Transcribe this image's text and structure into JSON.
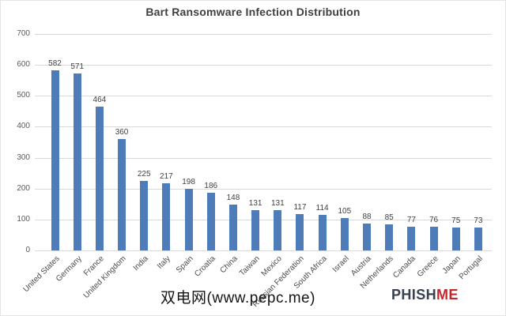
{
  "watermark": {
    "text": "双电网(www.pepc.me)"
  },
  "logo": {
    "part1": "PHISH",
    "part2": "ME",
    "color_dark": "#3a414c",
    "color_red": "#c1272d"
  },
  "chart_data": {
    "type": "bar",
    "title": "Bart Ransomware Infection Distribution",
    "categories": [
      "United States",
      "Germany",
      "France",
      "United Kingdom",
      "India",
      "Italy",
      "Spain",
      "Croatia",
      "China",
      "Taiwan",
      "Mexico",
      "Russian Federation",
      "South Africa",
      "Israel",
      "Austria",
      "Netherlands",
      "Canada",
      "Greece",
      "Japan",
      "Portugal"
    ],
    "values": [
      582,
      571,
      464,
      360,
      225,
      217,
      198,
      186,
      148,
      131,
      131,
      117,
      114,
      105,
      88,
      85,
      77,
      76,
      75,
      73
    ],
    "xlabel": "",
    "ylabel": "",
    "ylim": [
      0,
      700
    ],
    "y_ticks": [
      0,
      100,
      200,
      300,
      400,
      500,
      600,
      700
    ],
    "grid": true,
    "legend": false,
    "data_labels": true,
    "bar_color": "#4e7cb8",
    "gridline_color": "#d9d9d9",
    "x_label_rotation_deg": -45
  }
}
